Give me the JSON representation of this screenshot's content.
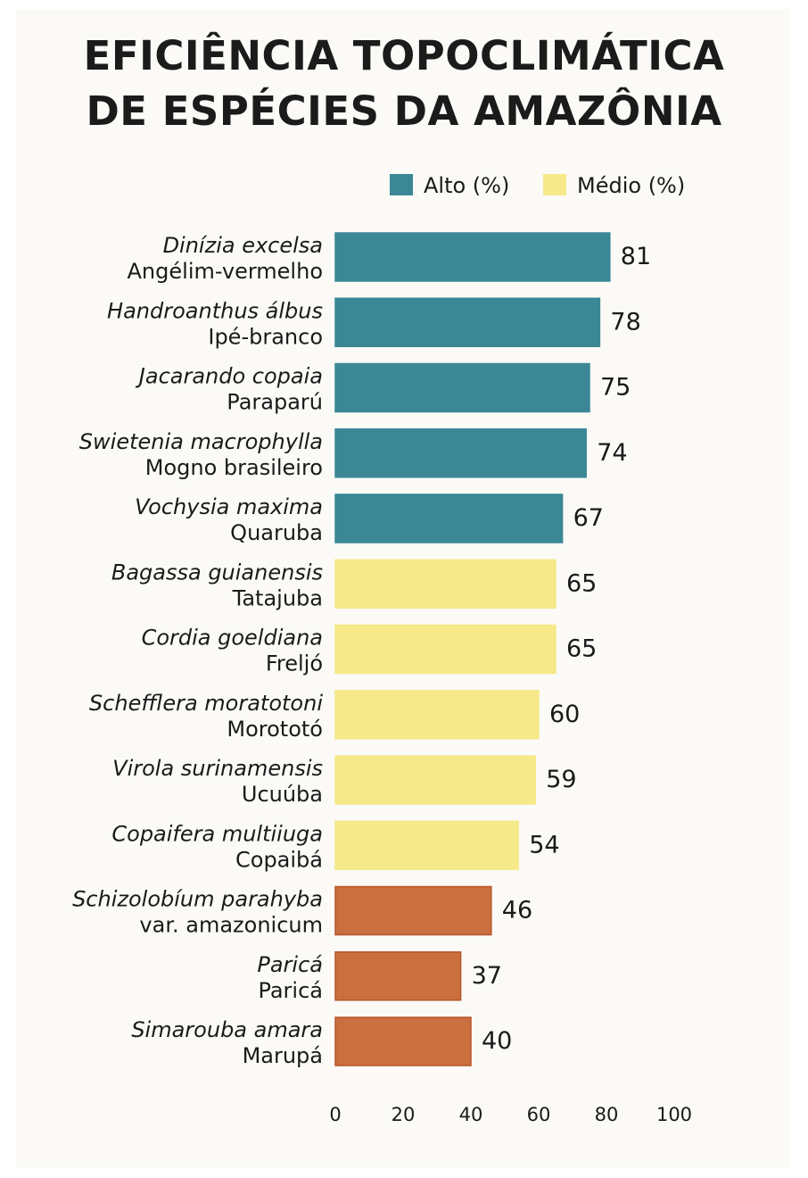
{
  "chart_data": {
    "type": "bar",
    "orientation": "horizontal",
    "title": [
      "EFICIÊNCIA TOPOCLIMÁTICA",
      "DE ESPÉCIES DA AMAZÔNIA"
    ],
    "legend": {
      "placement": "top-right",
      "entries": [
        {
          "name": "Alto (%)",
          "color": "#3b8796"
        },
        {
          "name": "Médio (%)",
          "color": "#f6e98a"
        }
      ]
    },
    "categories": [
      {
        "scientific": "Dinízia excelsa",
        "common": "Angélim-vermelho"
      },
      {
        "scientific": "Handroanthus álbus",
        "common": "Ipé-branco"
      },
      {
        "scientific": "Jacarando copaia",
        "common": "Paraparú"
      },
      {
        "scientific": "Swietenia macrophylla",
        "common": "Mogno brasileiro"
      },
      {
        "scientific": "Vochysia maxima",
        "common": "Quaruba"
      },
      {
        "scientific": "Bagassa guianensis",
        "common": "Tatajuba"
      },
      {
        "scientific": "Cordia goeldiana",
        "common": "Freljó"
      },
      {
        "scientific": "Schefflera moratotoni",
        "common": "Morototó"
      },
      {
        "scientific": "Virola surinamensis",
        "common": "Ucuúba"
      },
      {
        "scientific": "Copaifera multiiuga",
        "common": "Copaibá"
      },
      {
        "scientific": "Schizolobíum parahyba",
        "common": "var. amazonicum"
      },
      {
        "scientific": "Paricá",
        "common": "Paricá"
      },
      {
        "scientific": "Simarouba amara",
        "common": "Marupá"
      }
    ],
    "values": [
      81,
      78,
      75,
      74,
      67,
      65,
      65,
      60,
      59,
      54,
      46,
      37,
      40
    ],
    "value_labels": [
      "81",
      "78",
      "75",
      "74",
      "67",
      "65",
      "65",
      "60",
      "59",
      "54",
      "46",
      "37",
      "40"
    ],
    "bar_categories": [
      "alto",
      "alto",
      "alto",
      "alto",
      "alto",
      "medio",
      "medio",
      "medio",
      "medio",
      "medio",
      "baixo",
      "baixo",
      "baixo"
    ],
    "colors": {
      "alto": "#3b8796",
      "medio": "#f6e98a",
      "baixo": "#c9703e"
    },
    "border_colors": {
      "alto": "#3b8796",
      "medio": "#f6e98a",
      "baixo": "#b8552c"
    },
    "xticks": [
      "0",
      "20",
      "40",
      "60",
      "80",
      "100"
    ],
    "xlim": [
      0,
      100
    ],
    "grid": false
  }
}
